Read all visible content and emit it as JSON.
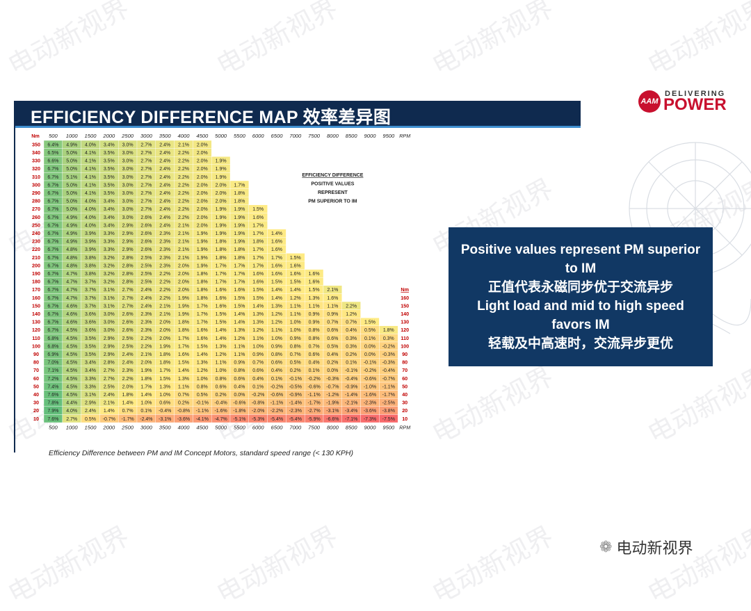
{
  "watermark_text": "电动新视界",
  "header": {
    "title": "EFFICIENCY DIFFERENCE MAP 效率差异图"
  },
  "logo": {
    "mark": "AAM",
    "tagline": "DELIVERING",
    "brand": "POWER",
    "color": "#c8102e"
  },
  "info_box": {
    "lines": [
      "Positive values represent PM superior",
      "to IM",
      "正值代表永磁同步优于交流异步",
      "Light load and mid to high speed",
      "favors IM",
      "轻载及中高速时，交流异步更优"
    ]
  },
  "footer": {
    "icon": "wechat-icon",
    "brand": "电动新视界"
  },
  "chart_data": {
    "type": "heatmap",
    "caption": "Efficiency Difference between PM and IM Concept Motors, standard speed range (< 130 KPH)",
    "row_unit": "Nm",
    "col_unit": "RPM",
    "rpm": [
      500,
      1000,
      1500,
      2000,
      2500,
      3000,
      3500,
      4000,
      4500,
      5000,
      5500,
      6000,
      6500,
      7000,
      7500,
      8000,
      8500,
      9000,
      9500
    ],
    "annotation": [
      "EFFICIENCY DIFFERENCE",
      "POSITIVE VALUES",
      "REPRESENT",
      "PM SUPERIOR TO IM"
    ],
    "right_labels": [
      "Nm",
      "160",
      "150",
      "140",
      "130",
      "120",
      "110",
      "100",
      "90",
      "80",
      "70",
      "60",
      "50",
      "40",
      "30",
      "20",
      "10"
    ],
    "colors": {
      "high": "#63be7b",
      "mid": "#ffeb84",
      "low": "#f8696b"
    },
    "rows": [
      {
        "nm": 350,
        "v": [
          6.4,
          4.9,
          4.0,
          3.4,
          3.0,
          2.7,
          2.4,
          2.1,
          2.0
        ]
      },
      {
        "nm": 340,
        "v": [
          6.5,
          5.0,
          4.1,
          3.5,
          3.0,
          2.7,
          2.4,
          2.2,
          2.0
        ]
      },
      {
        "nm": 330,
        "v": [
          6.6,
          5.0,
          4.1,
          3.5,
          3.0,
          2.7,
          2.4,
          2.2,
          2.0,
          1.9
        ]
      },
      {
        "nm": 320,
        "v": [
          6.7,
          5.0,
          4.1,
          3.5,
          3.0,
          2.7,
          2.4,
          2.2,
          2.0,
          1.9
        ]
      },
      {
        "nm": 310,
        "v": [
          6.7,
          5.1,
          4.1,
          3.5,
          3.0,
          2.7,
          2.4,
          2.2,
          2.0,
          1.9
        ]
      },
      {
        "nm": 300,
        "v": [
          6.7,
          5.0,
          4.1,
          3.5,
          3.0,
          2.7,
          2.4,
          2.2,
          2.0,
          2.0,
          1.7
        ]
      },
      {
        "nm": 290,
        "v": [
          6.7,
          5.0,
          4.1,
          3.5,
          3.0,
          2.7,
          2.4,
          2.2,
          2.0,
          2.0,
          1.8
        ]
      },
      {
        "nm": 280,
        "v": [
          6.7,
          5.0,
          4.0,
          3.4,
          3.0,
          2.7,
          2.4,
          2.2,
          2.0,
          2.0,
          1.8
        ]
      },
      {
        "nm": 270,
        "v": [
          6.7,
          5.0,
          4.0,
          3.4,
          3.0,
          2.7,
          2.4,
          2.2,
          2.0,
          1.9,
          1.9,
          1.5
        ]
      },
      {
        "nm": 260,
        "v": [
          6.7,
          4.9,
          4.0,
          3.4,
          3.0,
          2.6,
          2.4,
          2.2,
          2.0,
          1.9,
          1.9,
          1.6
        ]
      },
      {
        "nm": 250,
        "v": [
          6.7,
          4.9,
          4.0,
          3.4,
          2.9,
          2.6,
          2.4,
          2.1,
          2.0,
          1.9,
          1.9,
          1.7
        ]
      },
      {
        "nm": 240,
        "v": [
          6.7,
          4.9,
          3.9,
          3.3,
          2.9,
          2.6,
          2.3,
          2.1,
          1.9,
          1.9,
          1.9,
          1.7,
          1.4
        ]
      },
      {
        "nm": 230,
        "v": [
          6.7,
          4.9,
          3.9,
          3.3,
          2.9,
          2.6,
          2.3,
          2.1,
          1.9,
          1.8,
          1.9,
          1.8,
          1.6
        ]
      },
      {
        "nm": 220,
        "v": [
          6.7,
          4.8,
          3.9,
          3.3,
          2.9,
          2.6,
          2.3,
          2.1,
          1.9,
          1.8,
          1.8,
          1.7,
          1.6
        ]
      },
      {
        "nm": 210,
        "v": [
          6.7,
          4.8,
          3.8,
          3.2,
          2.8,
          2.5,
          2.3,
          2.1,
          1.9,
          1.8,
          1.8,
          1.7,
          1.7,
          1.5
        ]
      },
      {
        "nm": 200,
        "v": [
          6.7,
          4.8,
          3.8,
          3.2,
          2.8,
          2.5,
          2.3,
          2.0,
          1.9,
          1.7,
          1.7,
          1.7,
          1.6,
          1.6
        ]
      },
      {
        "nm": 190,
        "v": [
          6.7,
          4.7,
          3.8,
          3.2,
          2.8,
          2.5,
          2.2,
          2.0,
          1.8,
          1.7,
          1.7,
          1.6,
          1.6,
          1.6,
          1.6
        ]
      },
      {
        "nm": 180,
        "v": [
          6.7,
          4.7,
          3.7,
          3.2,
          2.8,
          2.5,
          2.2,
          2.0,
          1.8,
          1.7,
          1.7,
          1.6,
          1.5,
          1.5,
          1.6
        ]
      },
      {
        "nm": 170,
        "v": [
          6.7,
          4.7,
          3.7,
          3.1,
          2.7,
          2.4,
          2.2,
          2.0,
          1.8,
          1.6,
          1.6,
          1.5,
          1.4,
          1.4,
          1.5,
          2.1
        ]
      },
      {
        "nm": 160,
        "v": [
          6.7,
          4.7,
          3.7,
          3.1,
          2.7,
          2.4,
          2.2,
          1.9,
          1.8,
          1.6,
          1.5,
          1.5,
          1.4,
          1.2,
          1.3,
          1.6
        ]
      },
      {
        "nm": 150,
        "v": [
          6.7,
          4.6,
          3.7,
          3.1,
          2.7,
          2.4,
          2.1,
          1.9,
          1.7,
          1.6,
          1.5,
          1.4,
          1.3,
          1.1,
          1.1,
          1.1,
          2.2
        ]
      },
      {
        "nm": 140,
        "v": [
          6.7,
          4.6,
          3.6,
          3.0,
          2.6,
          2.3,
          2.1,
          1.9,
          1.7,
          1.5,
          1.4,
          1.3,
          1.2,
          1.1,
          0.9,
          0.9,
          1.2
        ]
      },
      {
        "nm": 130,
        "v": [
          6.7,
          4.6,
          3.6,
          3.0,
          2.6,
          2.3,
          2.0,
          1.8,
          1.7,
          1.5,
          1.4,
          1.3,
          1.2,
          1.0,
          0.9,
          0.7,
          0.7,
          1.5
        ]
      },
      {
        "nm": 120,
        "v": [
          6.7,
          4.5,
          3.6,
          3.0,
          2.6,
          2.3,
          2.0,
          1.8,
          1.6,
          1.4,
          1.3,
          1.2,
          1.1,
          1.0,
          0.8,
          0.6,
          0.4,
          0.5,
          1.8
        ]
      },
      {
        "nm": 110,
        "v": [
          6.8,
          4.5,
          3.5,
          2.9,
          2.5,
          2.2,
          2.0,
          1.7,
          1.6,
          1.4,
          1.2,
          1.1,
          1.0,
          0.9,
          0.8,
          0.6,
          0.3,
          0.1,
          0.3
        ]
      },
      {
        "nm": 100,
        "v": [
          6.8,
          4.5,
          3.5,
          2.9,
          2.5,
          2.2,
          1.9,
          1.7,
          1.5,
          1.3,
          1.1,
          1.0,
          0.9,
          0.8,
          0.7,
          0.5,
          0.3,
          0.0,
          -0.2
        ]
      },
      {
        "nm": 90,
        "v": [
          6.9,
          4.5,
          3.5,
          2.9,
          2.4,
          2.1,
          1.8,
          1.6,
          1.4,
          1.2,
          1.1,
          0.9,
          0.8,
          0.7,
          0.6,
          0.4,
          0.2,
          0.0,
          -0.3
        ]
      },
      {
        "nm": 80,
        "v": [
          7.0,
          4.5,
          3.4,
          2.8,
          2.4,
          2.0,
          1.8,
          1.5,
          1.3,
          1.1,
          0.9,
          0.7,
          0.6,
          0.5,
          0.4,
          0.2,
          0.1,
          -0.1,
          -0.3
        ]
      },
      {
        "nm": 70,
        "v": [
          7.1,
          4.5,
          3.4,
          2.7,
          2.3,
          1.9,
          1.7,
          1.4,
          1.2,
          1.0,
          0.8,
          0.6,
          0.4,
          0.2,
          0.1,
          0.0,
          -0.1,
          -0.2,
          -0.4
        ]
      },
      {
        "nm": 60,
        "v": [
          7.2,
          4.5,
          3.3,
          2.7,
          2.2,
          1.8,
          1.5,
          1.3,
          1.0,
          0.8,
          0.6,
          0.4,
          0.1,
          -0.1,
          -0.2,
          -0.3,
          -0.4,
          -0.6,
          -0.7
        ]
      },
      {
        "nm": 50,
        "v": [
          7.4,
          4.5,
          3.3,
          2.5,
          2.0,
          1.7,
          1.3,
          1.1,
          0.8,
          0.6,
          0.4,
          0.1,
          -0.2,
          -0.5,
          -0.6,
          -0.7,
          -0.9,
          -1.0,
          -1.1
        ]
      },
      {
        "nm": 40,
        "v": [
          7.6,
          4.5,
          3.1,
          2.4,
          1.8,
          1.4,
          1.0,
          0.7,
          0.5,
          0.2,
          0.0,
          -0.2,
          -0.6,
          -0.9,
          -1.1,
          -1.2,
          -1.4,
          -1.6,
          -1.7
        ]
      },
      {
        "nm": 30,
        "v": [
          7.8,
          4.4,
          2.9,
          2.1,
          1.4,
          1.0,
          0.6,
          0.2,
          -0.1,
          -0.4,
          -0.6,
          -0.8,
          -1.1,
          -1.4,
          -1.7,
          -1.9,
          -2.1,
          -2.3,
          -2.5
        ]
      },
      {
        "nm": 20,
        "v": [
          7.9,
          4.0,
          2.4,
          1.4,
          0.7,
          0.1,
          -0.4,
          -0.8,
          -1.1,
          -1.6,
          -1.8,
          -2.0,
          -2.2,
          -2.3,
          -2.7,
          -3.1,
          -3.4,
          -3.6,
          -3.8
        ]
      },
      {
        "nm": 10,
        "v": [
          7.6,
          2.7,
          0.5,
          -0.7,
          -1.7,
          -2.4,
          -3.1,
          -3.6,
          -4.1,
          -4.7,
          -5.1,
          -5.3,
          -5.4,
          -5.4,
          -5.9,
          -6.6,
          -7.1,
          -7.3,
          -7.5
        ]
      }
    ]
  }
}
